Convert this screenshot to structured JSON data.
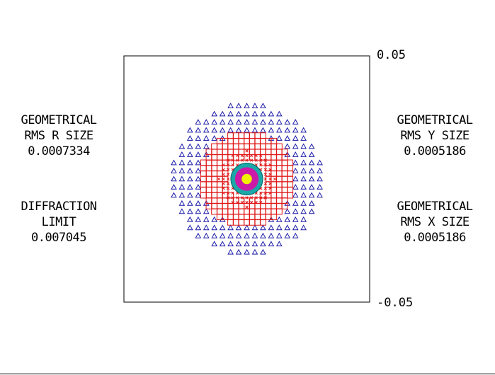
{
  "chart_data": {
    "type": "scatter",
    "title": "",
    "axis": {
      "ymax_label": "0.05",
      "ymin_label": "-0.05",
      "xlim": [
        -0.05,
        0.05
      ],
      "ylim": [
        -0.05,
        0.05
      ]
    },
    "grid": false,
    "series": [
      {
        "marker": "triangle",
        "color": "#1a1aa8",
        "ring_radius": 0.0305,
        "description_of_extent": "outer field"
      },
      {
        "marker": "square",
        "color": "#e01818",
        "ring_radius": 0.019,
        "description_of_extent": "mid field"
      },
      {
        "marker": "x",
        "color": "#e01818",
        "ring_radius": 0.0115,
        "description_of_extent": "inner grid crosses"
      },
      {
        "marker": "circle-fill",
        "color": "#1aa8a8",
        "ring_radius": 0.0065
      },
      {
        "marker": "circle-fill",
        "color": "#cc1aa8",
        "ring_radius": 0.0048
      },
      {
        "marker": "circle-fill",
        "color": "#f0f000",
        "ring_radius": 0.0021
      }
    ]
  },
  "left_stats": {
    "rms_r": {
      "line1": "GEOMETRICAL",
      "line2": "RMS R SIZE",
      "value": "0.0007334"
    },
    "diffraction": {
      "line1": "DIFFRACTION",
      "line2": "LIMIT",
      "value": "0.007045"
    }
  },
  "right_stats": {
    "rms_y": {
      "line1": "GEOMETRICAL",
      "line2": "RMS Y SIZE",
      "value": "0.0005186"
    },
    "rms_x": {
      "line1": "GEOMETRICAL",
      "line2": "RMS X SIZE",
      "value": "0.0005186"
    }
  }
}
